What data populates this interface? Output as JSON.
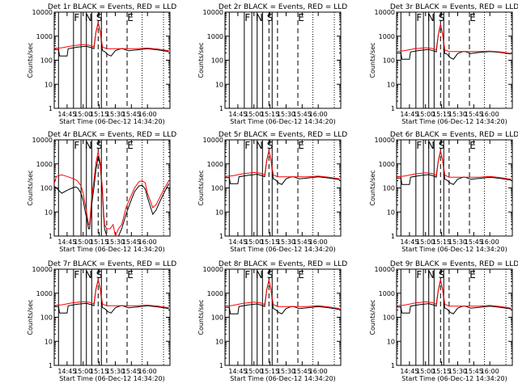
{
  "chart_data": {
    "type": "line",
    "layout": "3x3 grid",
    "yscale": "log",
    "ylim": [
      1,
      10000
    ],
    "xlim": [
      "14:33",
      "16:21"
    ],
    "y_ticks": [
      "1",
      "10",
      "100",
      "1000",
      "10000"
    ],
    "x_ticks": [
      "14:45",
      "15:00",
      "15:15",
      "15:30",
      "15:45",
      "16:00"
    ],
    "ylabel": "Counts/sec",
    "xlabel": "Start Time (06-Dec-12 14:34:20)",
    "flag_labels": [
      "F",
      "N",
      "S",
      "E"
    ],
    "colors": {
      "events": "#000000",
      "lld": "#ff0000"
    },
    "time_markers": {
      "solid": [
        "14:37",
        "14:51",
        "14:58",
        "15:03",
        "15:08",
        "15:17"
      ],
      "dashed": [
        "15:14",
        "15:22",
        "15:41"
      ],
      "dotted": [
        "15:55",
        "16:15"
      ]
    },
    "panels": [
      {
        "title": "Det 1r BLACK = Events, RED = LLD",
        "has_data": true,
        "series": [
          {
            "name": "Events",
            "color": "#000000",
            "t": [
              "14:33",
              "14:37",
              "14:38",
              "14:45",
              "14:46",
              "14:55",
              "15:03",
              "15:08",
              "15:10",
              "15:12",
              "15:14",
              "15:16",
              "15:18",
              "15:20",
              "15:23",
              "15:26",
              "15:30",
              "15:35",
              "15:37",
              "15:42",
              "15:50",
              "16:00",
              "16:10",
              "16:20"
            ],
            "y": [
              280,
              280,
              150,
              150,
              300,
              350,
              380,
              330,
              300,
              1500,
              3500,
              1500,
              250,
              230,
              170,
              150,
              250,
              300,
              300,
              250,
              270,
              300,
              270,
              230
            ]
          },
          {
            "name": "LLD",
            "color": "#ff0000",
            "t": [
              "14:33",
              "14:40",
              "14:50",
              "15:00",
              "15:06",
              "15:10",
              "15:12",
              "15:14",
              "15:16",
              "15:18",
              "15:22",
              "15:30",
              "15:40",
              "15:50",
              "16:00",
              "16:10",
              "16:20"
            ],
            "y": [
              310,
              330,
              400,
              450,
              420,
              360,
              1500,
              3800,
              1500,
              360,
              300,
              300,
              300,
              300,
              320,
              290,
              250
            ]
          }
        ]
      },
      {
        "title": "Det 2r BLACK = Events, RED = LLD",
        "has_data": false,
        "series": []
      },
      {
        "title": "Det 3r BLACK = Events, RED = LLD",
        "has_data": true,
        "series": [
          {
            "name": "Events",
            "color": "#000000",
            "t": [
              "14:33",
              "14:37",
              "14:38",
              "14:45",
              "14:46",
              "14:55",
              "15:03",
              "15:08",
              "15:10",
              "15:12",
              "15:14",
              "15:16",
              "15:18",
              "15:20",
              "15:23",
              "15:26",
              "15:30",
              "15:35",
              "15:37",
              "15:42",
              "15:50",
              "16:00",
              "16:10",
              "16:20"
            ],
            "y": [
              200,
              200,
              110,
              110,
              220,
              260,
              280,
              240,
              220,
              1200,
              3000,
              1200,
              190,
              180,
              130,
              110,
              190,
              230,
              230,
              190,
              210,
              230,
              210,
              180
            ]
          },
          {
            "name": "LLD",
            "color": "#ff0000",
            "t": [
              "14:33",
              "14:40",
              "14:50",
              "15:00",
              "15:06",
              "15:10",
              "15:12",
              "15:14",
              "15:16",
              "15:18",
              "15:22",
              "15:30",
              "15:40",
              "15:50",
              "16:00",
              "16:10",
              "16:20"
            ],
            "y": [
              230,
              250,
              300,
              330,
              310,
              270,
              1200,
              3200,
              1200,
              270,
              230,
              230,
              230,
              230,
              240,
              220,
              190
            ]
          }
        ]
      },
      {
        "title": "Det 4r BLACK = Events, RED = LLD",
        "has_data": true,
        "series": [
          {
            "name": "Events",
            "color": "#000000",
            "t": [
              "14:33",
              "14:36",
              "14:40",
              "14:45",
              "14:50",
              "14:53",
              "14:55",
              "14:58",
              "15:00",
              "15:02",
              "15:04",
              "15:05",
              "15:06",
              "15:08",
              "15:10",
              "15:12",
              "15:14",
              "15:16",
              "15:18",
              "15:19",
              "15:20",
              "15:22",
              "15:25",
              "15:28",
              "15:30",
              "15:33",
              "15:36",
              "15:40",
              "15:44",
              "15:48",
              "15:52",
              "15:55",
              "15:58",
              "16:00",
              "16:05",
              "16:08",
              "16:12",
              "16:16",
              "16:20"
            ],
            "y": [
              120,
              90,
              60,
              80,
              100,
              110,
              100,
              60,
              30,
              10,
              4,
              2,
              2,
              20,
              100,
              600,
              2000,
              800,
              60,
              8,
              2,
              1,
              1,
              1,
              1,
              1,
              2,
              8,
              25,
              70,
              120,
              130,
              90,
              40,
              8,
              12,
              30,
              70,
              150
            ]
          },
          {
            "name": "LLD",
            "color": "#ff0000",
            "t": [
              "14:33",
              "14:35",
              "14:40",
              "14:45",
              "14:50",
              "14:53",
              "14:55",
              "14:58",
              "15:00",
              "15:02",
              "15:04",
              "15:05",
              "15:06",
              "15:08",
              "15:10",
              "15:12",
              "15:14",
              "15:16",
              "15:18",
              "15:19",
              "15:20",
              "15:22",
              "15:25",
              "15:28",
              "15:30",
              "15:33",
              "15:36",
              "15:40",
              "15:44",
              "15:48",
              "15:52",
              "15:55",
              "15:58",
              "16:00",
              "16:05",
              "16:08",
              "16:12",
              "16:16",
              "16:20"
            ],
            "y": [
              150,
              300,
              350,
              300,
              250,
              220,
              190,
              120,
              60,
              20,
              6,
              3,
              3,
              40,
              200,
              1100,
              3200,
              1100,
              90,
              12,
              3,
              2,
              2,
              3,
              1,
              2,
              3,
              15,
              40,
              100,
              180,
              200,
              160,
              60,
              15,
              20,
              45,
              100,
              200
            ]
          }
        ]
      },
      {
        "title": "Det 5r BLACK = Events, RED = LLD",
        "has_data": true,
        "series": [
          {
            "name": "Events",
            "color": "#000000",
            "t": [
              "14:33",
              "14:37",
              "14:38",
              "14:45",
              "14:46",
              "14:55",
              "15:03",
              "15:08",
              "15:10",
              "15:12",
              "15:14",
              "15:16",
              "15:18",
              "15:20",
              "15:23",
              "15:26",
              "15:30",
              "15:35",
              "15:37",
              "15:42",
              "15:50",
              "16:00",
              "16:10",
              "16:20"
            ],
            "y": [
              270,
              270,
              150,
              150,
              290,
              340,
              370,
              320,
              290,
              1400,
              3400,
              1400,
              240,
              220,
              160,
              140,
              240,
              290,
              290,
              240,
              260,
              290,
              260,
              220
            ]
          },
          {
            "name": "LLD",
            "color": "#ff0000",
            "t": [
              "14:33",
              "14:40",
              "14:50",
              "15:00",
              "15:06",
              "15:10",
              "15:12",
              "15:14",
              "15:16",
              "15:18",
              "15:22",
              "15:30",
              "15:40",
              "15:50",
              "16:00",
              "16:10",
              "16:20"
            ],
            "y": [
              300,
              320,
              390,
              440,
              410,
              350,
              1400,
              3700,
              1400,
              350,
              290,
              290,
              290,
              290,
              310,
              280,
              240
            ]
          }
        ]
      },
      {
        "title": "Det 6r BLACK = Events, RED = LLD",
        "has_data": true,
        "series": [
          {
            "name": "Events",
            "color": "#000000",
            "t": [
              "14:33",
              "14:37",
              "14:38",
              "14:45",
              "14:46",
              "14:55",
              "15:03",
              "15:08",
              "15:10",
              "15:12",
              "15:14",
              "15:16",
              "15:18",
              "15:20",
              "15:23",
              "15:26",
              "15:30",
              "15:35",
              "15:37",
              "15:42",
              "15:50",
              "16:00",
              "16:10",
              "16:20"
            ],
            "y": [
              260,
              260,
              140,
              140,
              280,
              330,
              360,
              310,
              280,
              1400,
              3300,
              1400,
              230,
              210,
              160,
              140,
              230,
              280,
              280,
              230,
              250,
              280,
              250,
              210
            ]
          },
          {
            "name": "LLD",
            "color": "#ff0000",
            "t": [
              "14:33",
              "14:40",
              "14:50",
              "15:00",
              "15:06",
              "15:10",
              "15:12",
              "15:14",
              "15:16",
              "15:18",
              "15:22",
              "15:30",
              "15:40",
              "15:50",
              "16:00",
              "16:10",
              "16:20"
            ],
            "y": [
              290,
              310,
              380,
              430,
              400,
              340,
              1400,
              3600,
              1400,
              340,
              280,
              280,
              280,
              280,
              300,
              270,
              230
            ]
          }
        ]
      },
      {
        "title": "Det 7r BLACK = Events, RED = LLD",
        "has_data": true,
        "series": [
          {
            "name": "Events",
            "color": "#000000",
            "t": [
              "14:33",
              "14:37",
              "14:38",
              "14:45",
              "14:46",
              "14:55",
              "15:03",
              "15:08",
              "15:10",
              "15:12",
              "15:14",
              "15:16",
              "15:18",
              "15:20",
              "15:23",
              "15:26",
              "15:30",
              "15:35",
              "15:37",
              "15:42",
              "15:50",
              "16:00",
              "16:10",
              "16:20"
            ],
            "y": [
              280,
              280,
              150,
              150,
              300,
              350,
              380,
              330,
              300,
              1500,
              3500,
              1500,
              250,
              230,
              170,
              150,
              250,
              300,
              300,
              250,
              270,
              300,
              270,
              230
            ]
          },
          {
            "name": "LLD",
            "color": "#ff0000",
            "t": [
              "14:33",
              "14:40",
              "14:50",
              "15:00",
              "15:06",
              "15:10",
              "15:12",
              "15:14",
              "15:16",
              "15:18",
              "15:22",
              "15:30",
              "15:40",
              "15:50",
              "16:00",
              "16:10",
              "16:20"
            ],
            "y": [
              310,
              330,
              400,
              450,
              420,
              360,
              1500,
              3800,
              1500,
              360,
              300,
              300,
              300,
              300,
              320,
              290,
              250
            ]
          }
        ]
      },
      {
        "title": "Det 8r BLACK = Events, RED = LLD",
        "has_data": true,
        "series": [
          {
            "name": "Events",
            "color": "#000000",
            "t": [
              "14:33",
              "14:37",
              "14:38",
              "14:45",
              "14:46",
              "14:55",
              "15:03",
              "15:08",
              "15:10",
              "15:12",
              "15:14",
              "15:16",
              "15:18",
              "15:20",
              "15:23",
              "15:26",
              "15:30",
              "15:35",
              "15:37",
              "15:42",
              "15:50",
              "16:00",
              "16:10",
              "16:20"
            ],
            "y": [
              260,
              260,
              140,
              140,
              280,
              330,
              360,
              310,
              280,
              1400,
              3300,
              1400,
              230,
              210,
              160,
              140,
              230,
              280,
              280,
              230,
              250,
              280,
              250,
              210
            ]
          },
          {
            "name": "LLD",
            "color": "#ff0000",
            "t": [
              "14:33",
              "14:40",
              "14:50",
              "15:00",
              "15:06",
              "15:10",
              "15:12",
              "15:14",
              "15:16",
              "15:18",
              "15:22",
              "15:30",
              "15:40",
              "15:50",
              "16:00",
              "16:10",
              "16:20"
            ],
            "y": [
              290,
              310,
              380,
              430,
              400,
              340,
              1400,
              3600,
              1400,
              340,
              280,
              280,
              280,
              280,
              300,
              270,
              230
            ]
          }
        ]
      },
      {
        "title": "Det 9r BLACK = Events, RED = LLD",
        "has_data": true,
        "series": [
          {
            "name": "Events",
            "color": "#000000",
            "t": [
              "14:33",
              "14:37",
              "14:38",
              "14:45",
              "14:46",
              "14:55",
              "15:03",
              "15:08",
              "15:10",
              "15:12",
              "15:14",
              "15:16",
              "15:18",
              "15:20",
              "15:23",
              "15:26",
              "15:30",
              "15:35",
              "15:37",
              "15:42",
              "15:50",
              "16:00",
              "16:10",
              "16:20"
            ],
            "y": [
              270,
              270,
              150,
              150,
              290,
              340,
              370,
              320,
              290,
              1400,
              3400,
              1400,
              240,
              220,
              160,
              140,
              240,
              290,
              290,
              240,
              260,
              290,
              260,
              220
            ]
          },
          {
            "name": "LLD",
            "color": "#ff0000",
            "t": [
              "14:33",
              "14:40",
              "14:50",
              "15:00",
              "15:06",
              "15:10",
              "15:12",
              "15:14",
              "15:16",
              "15:18",
              "15:22",
              "15:30",
              "15:40",
              "15:50",
              "16:00",
              "16:10",
              "16:20"
            ],
            "y": [
              300,
              320,
              390,
              440,
              410,
              350,
              1400,
              3700,
              1400,
              350,
              290,
              290,
              290,
              290,
              310,
              280,
              240
            ]
          }
        ]
      }
    ]
  }
}
